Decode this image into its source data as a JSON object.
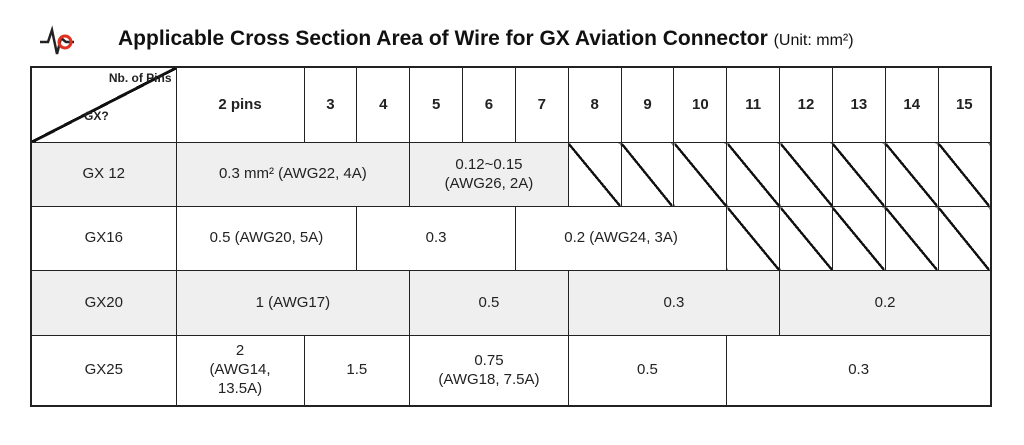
{
  "title": "Applicable Cross Section Area of Wire for GX Aviation Connector",
  "unit": "(Unit: mm²)",
  "header": {
    "corner_top": "Nb. of Pins",
    "corner_bottom": "GX?",
    "columns": [
      "2 pins",
      "3",
      "4",
      "5",
      "6",
      "7",
      "8",
      "9",
      "10",
      "11",
      "12",
      "13",
      "14",
      "15"
    ]
  },
  "rows": [
    {
      "label": "GX 12",
      "cells": [
        "0.3 mm² (AWG22, 4A)",
        "0.12~0.15\n(AWG26, 2A)"
      ]
    },
    {
      "label": "GX16",
      "cells": [
        "0.5 (AWG20, 5A)",
        "0.3",
        "0.2 (AWG24, 3A)"
      ]
    },
    {
      "label": "GX20",
      "cells": [
        "1 (AWG17)",
        "0.5",
        "0.3",
        "0.2"
      ]
    },
    {
      "label": "GX25",
      "cells": [
        "2\n(AWG14,\n13.5A)",
        "1.5",
        "0.75\n(AWG18, 7.5A)",
        "0.5",
        "0.3"
      ]
    }
  ]
}
